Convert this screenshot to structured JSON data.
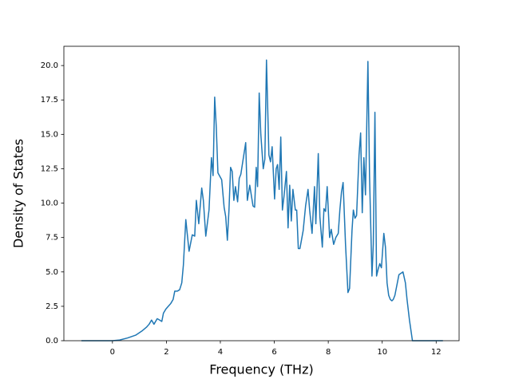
{
  "chart_data": {
    "type": "line",
    "xlabel": "Frequency (THz)",
    "ylabel": "Density of States",
    "xlim": [
      -1.8,
      12.85
    ],
    "ylim": [
      0,
      21.4
    ],
    "xticks": [
      0,
      2,
      4,
      6,
      8,
      10,
      12
    ],
    "yticks": [
      {
        "value": 0,
        "label": "0.0"
      },
      {
        "value": 2.5,
        "label": "2.5"
      },
      {
        "value": 5,
        "label": "5.0"
      },
      {
        "value": 7.5,
        "label": "7.5"
      },
      {
        "value": 10,
        "label": "10.0"
      },
      {
        "value": 12.5,
        "label": "12.5"
      },
      {
        "value": 15,
        "label": "15.0"
      },
      {
        "value": 17.5,
        "label": "17.5"
      },
      {
        "value": 20,
        "label": "20.0"
      }
    ],
    "grid": false,
    "series": [
      {
        "color": "#1f77b4",
        "x": [
          -1.15,
          0,
          0.27,
          0.56,
          0.86,
          1.09,
          1.27,
          1.36,
          1.45,
          1.54,
          1.66,
          1.75,
          1.83,
          1.89,
          1.98,
          2.07,
          2.16,
          2.25,
          2.31,
          2.4,
          2.49,
          2.57,
          2.63,
          2.72,
          2.84,
          2.96,
          3.05,
          3.11,
          3.2,
          3.31,
          3.37,
          3.46,
          3.58,
          3.67,
          3.73,
          3.79,
          3.85,
          3.91,
          4.05,
          4.14,
          4.2,
          4.26,
          4.32,
          4.38,
          4.44,
          4.5,
          4.56,
          4.64,
          4.7,
          4.76,
          4.94,
          5.0,
          5.09,
          5.21,
          5.27,
          5.33,
          5.38,
          5.44,
          5.5,
          5.59,
          5.65,
          5.71,
          5.8,
          5.86,
          5.92,
          6.01,
          6.07,
          6.12,
          6.18,
          6.24,
          6.3,
          6.36,
          6.45,
          6.51,
          6.57,
          6.63,
          6.69,
          6.78,
          6.83,
          6.89,
          6.95,
          7.07,
          7.16,
          7.25,
          7.31,
          7.4,
          7.49,
          7.54,
          7.63,
          7.69,
          7.78,
          7.84,
          7.9,
          7.96,
          8.05,
          8.11,
          8.2,
          8.28,
          8.37,
          8.43,
          8.49,
          8.55,
          8.64,
          8.73,
          8.79,
          8.88,
          8.93,
          8.99,
          9.05,
          9.14,
          9.2,
          9.26,
          9.32,
          9.38,
          9.47,
          9.53,
          9.62,
          9.67,
          9.73,
          9.79,
          9.85,
          9.91,
          9.97,
          10.06,
          10.12,
          10.18,
          10.24,
          10.3,
          10.36,
          10.41,
          10.47,
          10.62,
          10.77,
          10.86,
          10.92,
          11.01,
          11.12,
          12.25
        ],
        "values": [
          0,
          0,
          0.05,
          0.2,
          0.4,
          0.7,
          1.0,
          1.2,
          1.5,
          1.2,
          1.6,
          1.5,
          1.4,
          2.0,
          2.3,
          2.5,
          2.7,
          3.0,
          3.6,
          3.6,
          3.7,
          4.2,
          5.5,
          8.8,
          6.5,
          7.7,
          7.6,
          10.2,
          8.5,
          11.1,
          10.2,
          7.6,
          9.5,
          13.3,
          12,
          17.7,
          15.5,
          12.2,
          11.7,
          9.7,
          9,
          7.3,
          9.5,
          12.6,
          12.3,
          10.2,
          11.2,
          10.1,
          11.8,
          12.1,
          14.4,
          10.2,
          11.3,
          9.8,
          9.7,
          12.6,
          11.2,
          18,
          15,
          12.5,
          13.2,
          20.4,
          13.5,
          13,
          14.1,
          10.3,
          12.5,
          12.8,
          11,
          14.8,
          9.5,
          10.5,
          12.3,
          8.2,
          11.3,
          8.7,
          11,
          9.5,
          9.5,
          6.7,
          6.7,
          8,
          9.8,
          11,
          9.5,
          7.8,
          11.2,
          8.5,
          13.6,
          9,
          6.8,
          9.6,
          9.4,
          11.2,
          7.5,
          8.1,
          7,
          7.5,
          7.8,
          9.5,
          10.8,
          11.5,
          7,
          3.5,
          3.8,
          8,
          9.5,
          8.9,
          9.1,
          13.5,
          15.1,
          9.3,
          13.3,
          10.6,
          20.3,
          12,
          4.7,
          7,
          16.6,
          4.7,
          5.2,
          5.6,
          5.3,
          7.8,
          6.8,
          4.2,
          3.3,
          3,
          2.9,
          3,
          3.3,
          4.8,
          5,
          4.2,
          3,
          1.5,
          0,
          0
        ]
      }
    ]
  }
}
